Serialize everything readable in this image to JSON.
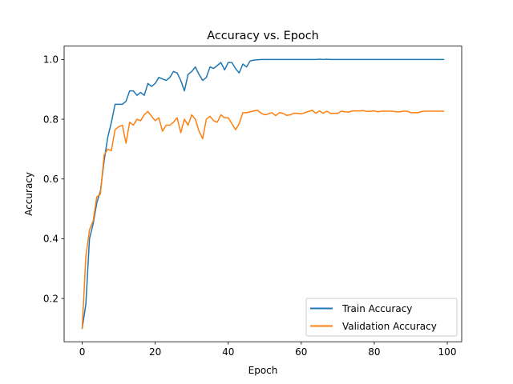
{
  "chart_data": {
    "type": "line",
    "title": "Accuracy vs. Epoch",
    "xlabel": "Epoch",
    "ylabel": "Accuracy",
    "xlim": [
      -4.95,
      103.95
    ],
    "ylim": [
      0.055,
      1.045
    ],
    "xticks": [
      0,
      20,
      40,
      60,
      80,
      100
    ],
    "yticks": [
      0.2,
      0.4,
      0.6,
      0.8,
      1.0
    ],
    "xtick_labels": [
      "0",
      "20",
      "40",
      "60",
      "80",
      "100"
    ],
    "ytick_labels": [
      "0.2",
      "0.4",
      "0.6",
      "0.8",
      "1.0"
    ],
    "grid": false,
    "legend_position": "lower-right",
    "series": [
      {
        "name": "Train Accuracy",
        "color": "#1f77b4",
        "x": [
          0,
          1,
          2,
          3,
          4,
          5,
          6,
          7,
          8,
          9,
          10,
          11,
          12,
          13,
          14,
          15,
          16,
          17,
          18,
          19,
          20,
          21,
          22,
          23,
          24,
          25,
          26,
          27,
          28,
          29,
          30,
          31,
          32,
          33,
          34,
          35,
          36,
          37,
          38,
          39,
          40,
          41,
          42,
          43,
          44,
          45,
          46,
          47,
          48,
          49,
          50,
          51,
          52,
          53,
          54,
          55,
          56,
          57,
          58,
          59,
          60,
          61,
          62,
          63,
          64,
          65,
          66,
          67,
          68,
          69,
          70,
          71,
          72,
          73,
          74,
          75,
          76,
          77,
          78,
          79,
          80,
          81,
          82,
          83,
          84,
          85,
          86,
          87,
          88,
          89,
          90,
          91,
          92,
          93,
          94,
          95,
          96,
          97,
          98,
          99
        ],
        "values": [
          0.1,
          0.18,
          0.4,
          0.45,
          0.52,
          0.56,
          0.66,
          0.74,
          0.79,
          0.85,
          0.85,
          0.85,
          0.86,
          0.895,
          0.895,
          0.88,
          0.89,
          0.88,
          0.92,
          0.91,
          0.92,
          0.94,
          0.935,
          0.93,
          0.94,
          0.96,
          0.955,
          0.93,
          0.895,
          0.95,
          0.96,
          0.975,
          0.95,
          0.93,
          0.94,
          0.975,
          0.97,
          0.98,
          0.99,
          0.965,
          0.99,
          0.99,
          0.97,
          0.955,
          0.985,
          0.975,
          0.995,
          0.998,
          0.999,
          1.0,
          1.0,
          1.0,
          1.0,
          1.0,
          1.0,
          1.0,
          1.0,
          1.0,
          1.0,
          1.0,
          1.0,
          1.0,
          1.0,
          1.0,
          1.0,
          1.001,
          1.0,
          1.001,
          1.0,
          1.0,
          1.0,
          1.0,
          1.0,
          1.0,
          1.0,
          1.0,
          1.0,
          1.0,
          1.0,
          1.0,
          1.0,
          1.0,
          1.0,
          1.0,
          1.0,
          1.0,
          1.0,
          1.0,
          1.0,
          1.0,
          1.0,
          1.0,
          1.0,
          1.0,
          1.0,
          1.0,
          1.0,
          1.0,
          1.0,
          1.0
        ]
      },
      {
        "name": "Validation Accuracy",
        "color": "#ff7f0e",
        "x": [
          0,
          1,
          2,
          3,
          4,
          5,
          6,
          7,
          8,
          9,
          10,
          11,
          12,
          13,
          14,
          15,
          16,
          17,
          18,
          19,
          20,
          21,
          22,
          23,
          24,
          25,
          26,
          27,
          28,
          29,
          30,
          31,
          32,
          33,
          34,
          35,
          36,
          37,
          38,
          39,
          40,
          41,
          42,
          43,
          44,
          45,
          46,
          47,
          48,
          49,
          50,
          51,
          52,
          53,
          54,
          55,
          56,
          57,
          58,
          59,
          60,
          61,
          62,
          63,
          64,
          65,
          66,
          67,
          68,
          69,
          70,
          71,
          72,
          73,
          74,
          75,
          76,
          77,
          78,
          79,
          80,
          81,
          82,
          83,
          84,
          85,
          86,
          87,
          88,
          89,
          90,
          91,
          92,
          93,
          94,
          95,
          96,
          97,
          98,
          99
        ],
        "values": [
          0.1,
          0.34,
          0.43,
          0.46,
          0.54,
          0.55,
          0.68,
          0.7,
          0.695,
          0.765,
          0.775,
          0.78,
          0.72,
          0.79,
          0.78,
          0.8,
          0.795,
          0.815,
          0.826,
          0.81,
          0.795,
          0.805,
          0.76,
          0.78,
          0.78,
          0.79,
          0.805,
          0.755,
          0.8,
          0.78,
          0.815,
          0.8,
          0.76,
          0.735,
          0.8,
          0.81,
          0.795,
          0.79,
          0.815,
          0.805,
          0.805,
          0.785,
          0.765,
          0.785,
          0.822,
          0.822,
          0.825,
          0.828,
          0.83,
          0.82,
          0.815,
          0.818,
          0.822,
          0.812,
          0.822,
          0.82,
          0.813,
          0.815,
          0.82,
          0.82,
          0.818,
          0.822,
          0.826,
          0.83,
          0.82,
          0.828,
          0.82,
          0.827,
          0.82,
          0.82,
          0.82,
          0.827,
          0.825,
          0.824,
          0.828,
          0.828,
          0.828,
          0.829,
          0.826,
          0.827,
          0.828,
          0.825,
          0.827,
          0.827,
          0.827,
          0.827,
          0.825,
          0.825,
          0.827,
          0.827,
          0.822,
          0.822,
          0.822,
          0.826,
          0.827,
          0.827,
          0.827,
          0.827,
          0.827,
          0.827
        ]
      }
    ]
  }
}
